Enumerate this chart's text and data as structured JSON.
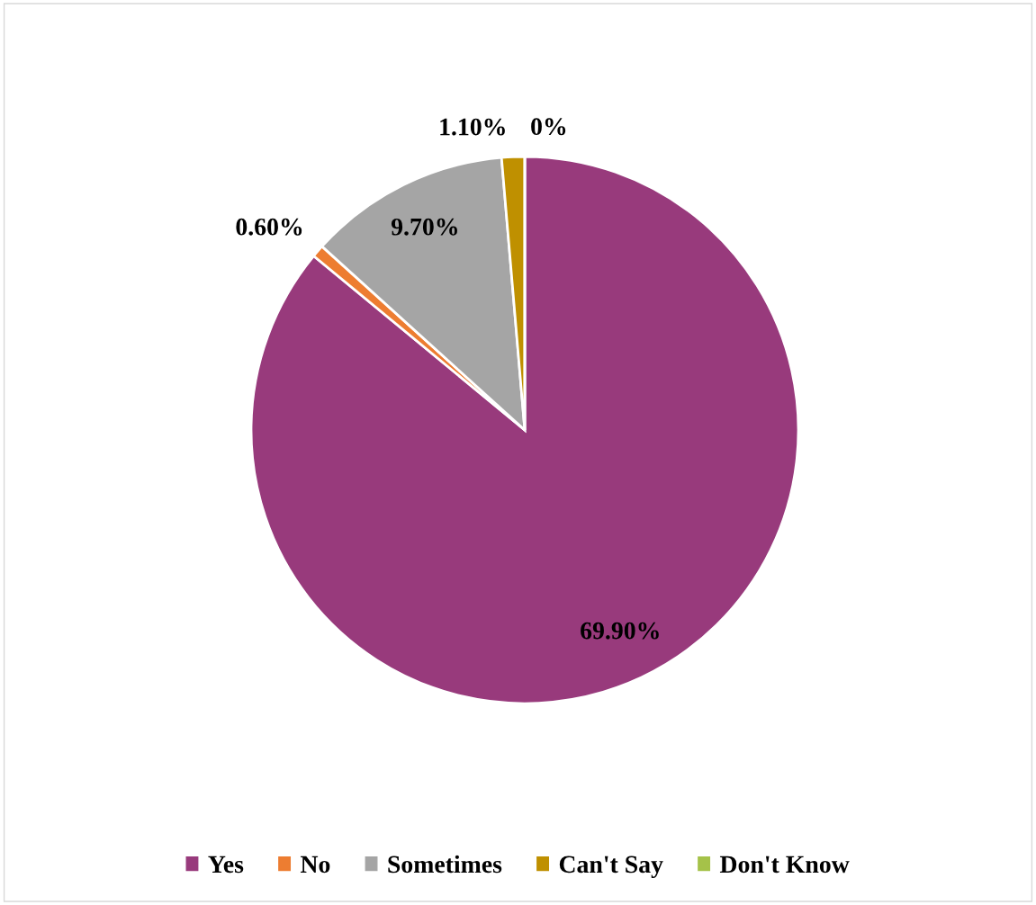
{
  "chart_data": {
    "type": "pie",
    "categories": [
      "Yes",
      "No",
      "Sometimes",
      "Can't Say",
      "Don't Know"
    ],
    "values": [
      69.9,
      0.6,
      9.7,
      1.1,
      0
    ],
    "value_labels": [
      "69.90%",
      "0.60%",
      "9.70%",
      "1.10%",
      "0%"
    ],
    "colors": [
      "#983a7c",
      "#ed7d31",
      "#a5a5a5",
      "#bf9000",
      "#a5c249"
    ],
    "legend": "bottom"
  }
}
